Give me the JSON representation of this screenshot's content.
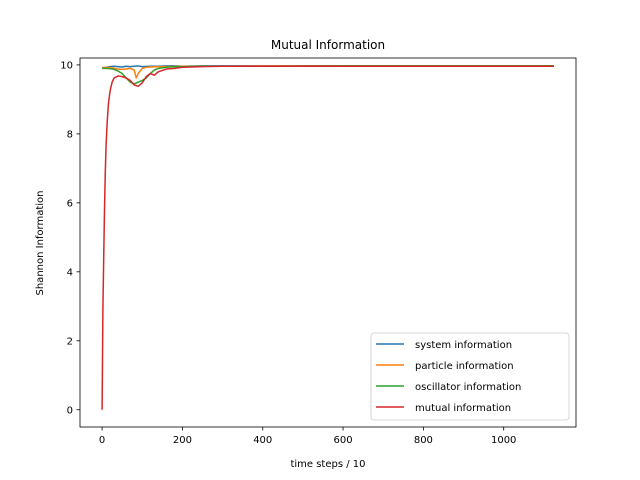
{
  "chart_data": {
    "type": "line",
    "title": "Mutual Information",
    "xlabel": "time steps / 10",
    "ylabel": "Shannon Information",
    "xlim": [
      -55,
      1180
    ],
    "ylim": [
      -0.5,
      10.2
    ],
    "xticks": [
      0,
      200,
      400,
      600,
      800,
      1000
    ],
    "yticks": [
      0,
      2,
      4,
      6,
      8,
      10
    ],
    "grid": false,
    "legend_position": "lower-right",
    "series": [
      {
        "name": "system information",
        "color": "#1f77b4",
        "x": [
          0,
          10,
          20,
          30,
          40,
          50,
          60,
          70,
          80,
          90,
          100,
          120,
          140,
          160,
          180,
          200,
          250,
          300,
          400,
          500,
          600,
          700,
          800,
          900,
          1000,
          1125
        ],
        "y": [
          9.92,
          9.93,
          9.95,
          9.96,
          9.95,
          9.94,
          9.96,
          9.95,
          9.96,
          9.97,
          9.95,
          9.96,
          9.96,
          9.97,
          9.97,
          9.96,
          9.97,
          9.97,
          9.97,
          9.97,
          9.97,
          9.97,
          9.97,
          9.97,
          9.97,
          9.97
        ]
      },
      {
        "name": "particle information",
        "color": "#ff7f0e",
        "x": [
          0,
          10,
          20,
          30,
          40,
          50,
          60,
          70,
          80,
          85,
          90,
          100,
          110,
          120,
          140,
          160,
          200,
          250,
          300,
          400,
          600,
          800,
          1000,
          1125
        ],
        "y": [
          9.92,
          9.93,
          9.92,
          9.9,
          9.88,
          9.87,
          9.88,
          9.9,
          9.85,
          9.62,
          9.75,
          9.9,
          9.93,
          9.94,
          9.95,
          9.95,
          9.96,
          9.96,
          9.96,
          9.97,
          9.97,
          9.97,
          9.97,
          9.97
        ]
      },
      {
        "name": "oscillator information",
        "color": "#2ca02c",
        "x": [
          0,
          10,
          20,
          30,
          40,
          50,
          60,
          70,
          80,
          90,
          100,
          110,
          120,
          130,
          140,
          160,
          180,
          200,
          250,
          300,
          400,
          600,
          800,
          1000,
          1125
        ],
        "y": [
          9.9,
          9.9,
          9.89,
          9.87,
          9.82,
          9.75,
          9.62,
          9.5,
          9.45,
          9.5,
          9.55,
          9.62,
          9.75,
          9.85,
          9.9,
          9.93,
          9.95,
          9.95,
          9.96,
          9.96,
          9.96,
          9.97,
          9.97,
          9.97,
          9.97
        ]
      },
      {
        "name": "mutual information",
        "color": "#d62728",
        "x": [
          0,
          2,
          4,
          6,
          8,
          10,
          13,
          16,
          20,
          25,
          30,
          40,
          50,
          60,
          70,
          80,
          90,
          100,
          110,
          120,
          130,
          140,
          150,
          160,
          180,
          200,
          220,
          250,
          300,
          400,
          600,
          800,
          1000,
          1125
        ],
        "y": [
          0.0,
          2.9,
          4.4,
          5.8,
          6.9,
          7.7,
          8.4,
          8.9,
          9.25,
          9.5,
          9.62,
          9.68,
          9.66,
          9.62,
          9.55,
          9.42,
          9.38,
          9.48,
          9.66,
          9.75,
          9.7,
          9.8,
          9.84,
          9.88,
          9.9,
          9.93,
          9.94,
          9.95,
          9.96,
          9.96,
          9.96,
          9.96,
          9.96,
          9.96
        ]
      }
    ]
  }
}
